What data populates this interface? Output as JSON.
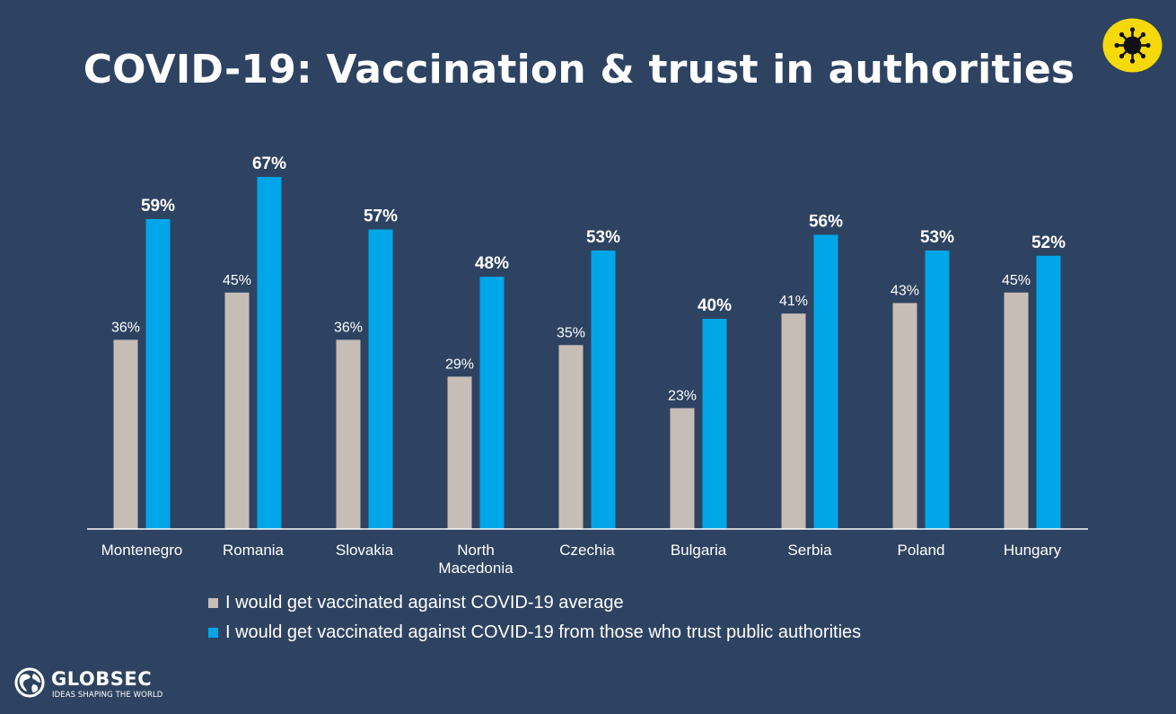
{
  "chart_data": {
    "type": "bar",
    "title": "COVID-19: Vaccination & trust in authorities",
    "categories": [
      [
        "Montenegro"
      ],
      [
        "Romania"
      ],
      [
        "Slovakia"
      ],
      [
        "North",
        "Macedonia"
      ],
      [
        "Czechia"
      ],
      [
        "Bulgaria"
      ],
      [
        "Serbia"
      ],
      [
        "Poland"
      ],
      [
        "Hungary"
      ]
    ],
    "series": [
      {
        "name": "I would get vaccinated against COVID-19 average",
        "values": [
          36,
          45,
          36,
          29,
          35,
          23,
          41,
          43,
          45
        ],
        "labels": [
          "36%",
          "45%",
          "36%",
          "29%",
          "35%",
          "23%",
          "41%",
          "43%",
          "45%"
        ],
        "color": "#c7bdb7"
      },
      {
        "name": "I would get vaccinated against COVID-19 from those who trust public authorities",
        "values": [
          59,
          67,
          57,
          48,
          53,
          40,
          56,
          53,
          52
        ],
        "labels": [
          "59%",
          "67%",
          "57%",
          "48%",
          "53%",
          "40%",
          "56%",
          "53%",
          "52%"
        ],
        "color": "#00a6e8"
      }
    ],
    "xlabel": "",
    "ylabel": "",
    "ylim": [
      0,
      70
    ],
    "grid": false,
    "legend_position": "bottom"
  },
  "branding": {
    "logo_name": "GLOBSEC",
    "logo_tagline": "IDEAS SHAPING THE WORLD",
    "badge_icon": "virus-icon",
    "badge_color": "#f5d90a",
    "background_color": "#2e4361"
  }
}
